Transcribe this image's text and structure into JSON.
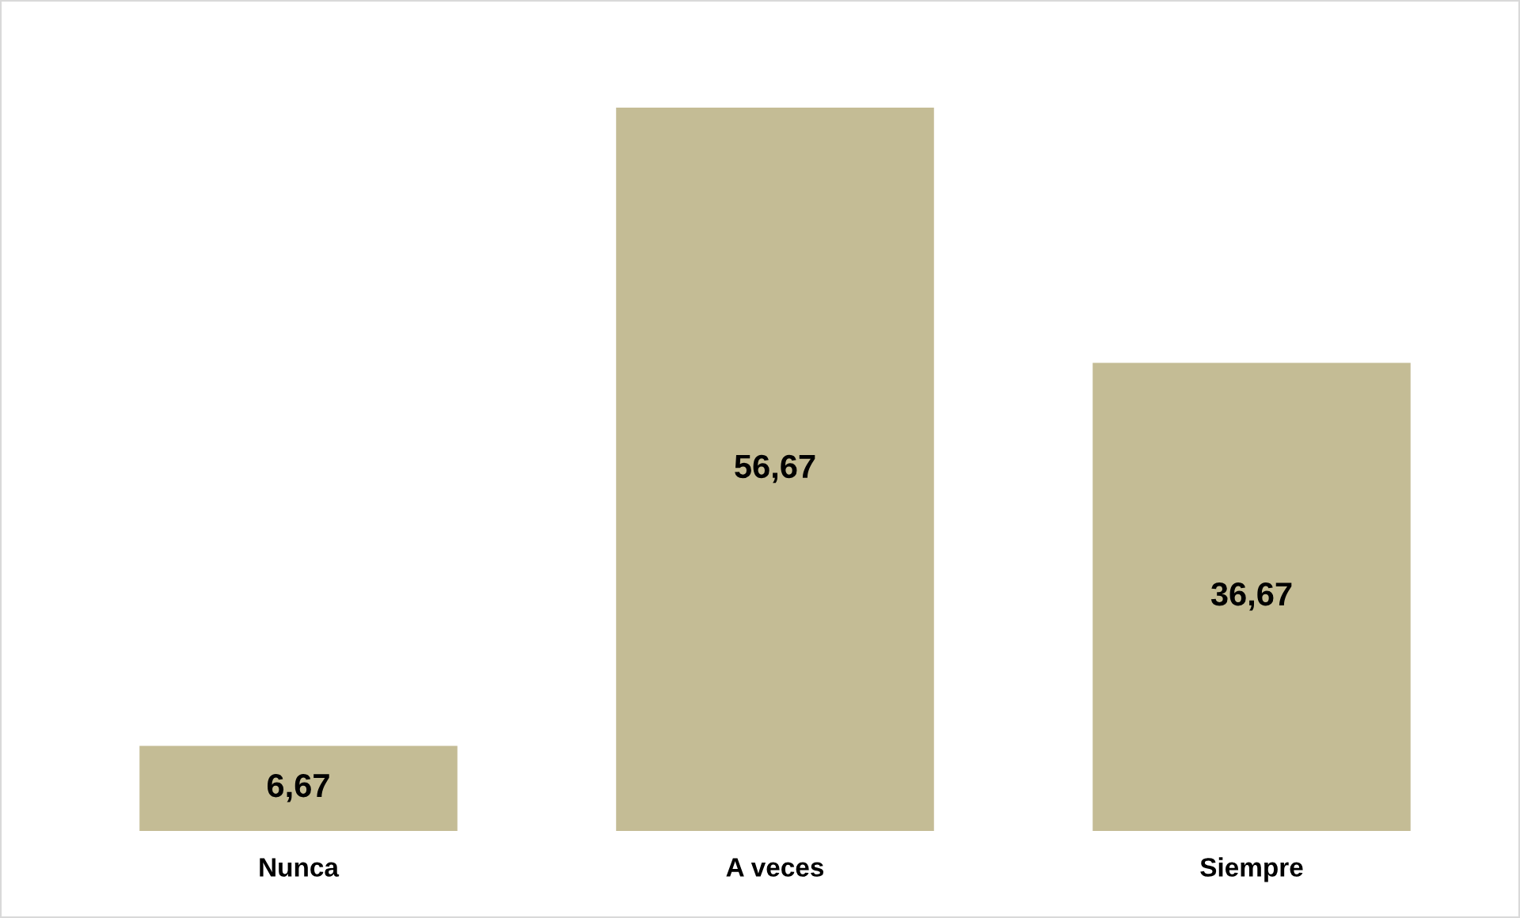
{
  "chart_data": {
    "type": "bar",
    "categories": [
      "Nunca",
      "A veces",
      "Siempre"
    ],
    "values": [
      6.67,
      56.67,
      36.67
    ],
    "value_labels": [
      "6,67",
      "56,67",
      "36,67"
    ],
    "color": "#c4bc95",
    "grid": false,
    "legend": false
  }
}
